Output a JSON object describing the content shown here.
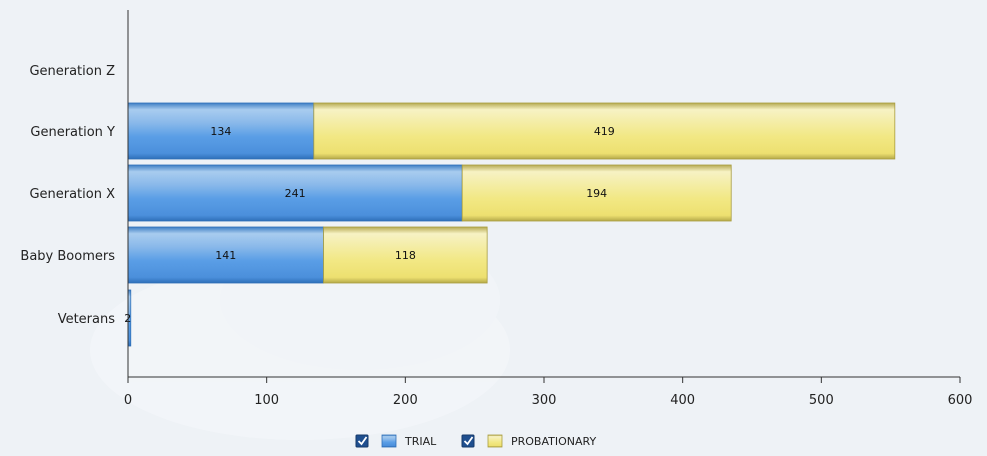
{
  "chart_data": {
    "type": "bar",
    "orientation": "horizontal",
    "stacked": true,
    "categories": [
      "Generation Z",
      "Generation Y",
      "Generation X",
      "Baby Boomers",
      "Veterans"
    ],
    "series": [
      {
        "name": "TRIAL",
        "values": [
          0,
          134,
          241,
          141,
          2
        ],
        "color": "#5a9ee6"
      },
      {
        "name": "PROBATIONARY",
        "values": [
          0,
          419,
          194,
          118,
          0
        ],
        "color": "#f2e884"
      }
    ],
    "data_labels": [
      [
        "",
        "134",
        "241",
        "141",
        "2"
      ],
      [
        "",
        "419",
        "194",
        "118",
        ""
      ]
    ],
    "xlim": [
      0,
      600
    ],
    "xticks": [
      0,
      100,
      200,
      300,
      400,
      500,
      600
    ],
    "xtick_labels": [
      "0",
      "100",
      "200",
      "300",
      "400",
      "500",
      "600"
    ],
    "title": "",
    "xlabel": "",
    "ylabel": "",
    "grid": false,
    "legend": {
      "placement": "bottom-center",
      "checked": [
        true,
        true
      ]
    }
  },
  "colors": {
    "background": "#eef2f6",
    "axis": "#333333",
    "trial": "#5a9ee6",
    "probationary": "#f2e884",
    "checkbox": "#1f4f8f"
  }
}
